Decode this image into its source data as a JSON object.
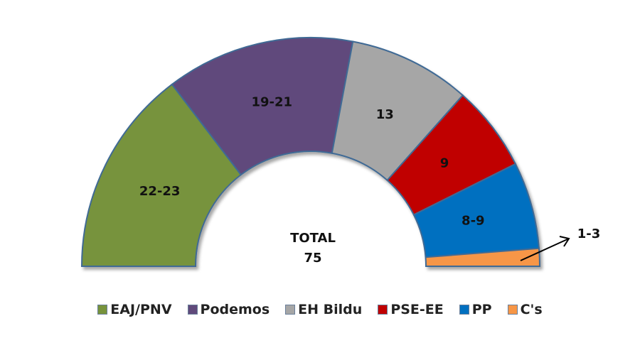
{
  "chart_data": {
    "type": "pie",
    "subtype": "half-donut parliament",
    "title": "",
    "total_label": "TOTAL",
    "total_value": "75",
    "series": [
      {
        "name": "EAJ/PNV",
        "label": "22-23",
        "value": 22.5,
        "color": "#77933C"
      },
      {
        "name": "Podemos",
        "label": "19-21",
        "value": 20,
        "color": "#604A7B"
      },
      {
        "name": "EH Bildu",
        "label": "13",
        "value": 13,
        "color": "#A6A6A6"
      },
      {
        "name": "PSE-EE",
        "label": "9",
        "value": 9,
        "color": "#C00000"
      },
      {
        "name": "PP",
        "label": "8-9",
        "value": 8.5,
        "color": "#0070C0"
      },
      {
        "name": "C's",
        "label": "1-3",
        "value": 2,
        "color": "#F79646"
      }
    ],
    "legend_position": "bottom"
  }
}
